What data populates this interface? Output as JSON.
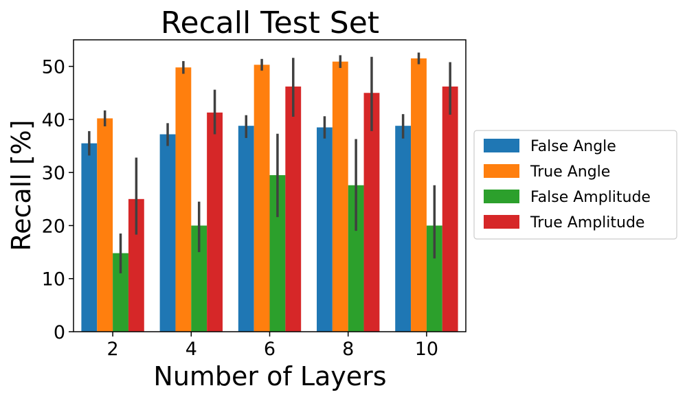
{
  "chart_data": {
    "type": "bar",
    "title": "Recall Test Set",
    "xlabel": "Number of Layers",
    "ylabel": "Recall [%]",
    "categories": [
      "2",
      "4",
      "6",
      "8",
      "10"
    ],
    "ylim": [
      0,
      55
    ],
    "yticks": [
      0,
      10,
      20,
      30,
      40,
      50
    ],
    "grid": false,
    "legend_position": "right",
    "series": [
      {
        "name": "False Angle",
        "color": "#1f77b4",
        "values": [
          35.5,
          37.2,
          38.8,
          38.5,
          38.8
        ],
        "err_low": [
          33.2,
          35.0,
          36.5,
          36.4,
          36.4
        ],
        "err_high": [
          37.8,
          39.3,
          40.8,
          40.6,
          41.0
        ]
      },
      {
        "name": "True Angle",
        "color": "#ff7f0e",
        "values": [
          40.2,
          49.8,
          50.3,
          50.9,
          51.5
        ],
        "err_low": [
          38.7,
          48.6,
          49.2,
          49.7,
          50.4
        ],
        "err_high": [
          41.7,
          51.0,
          51.4,
          52.1,
          52.6
        ]
      },
      {
        "name": "False Amplitude",
        "color": "#2ca02c",
        "values": [
          14.8,
          20.0,
          29.5,
          27.6,
          20.0
        ],
        "err_low": [
          11.0,
          15.0,
          21.6,
          19.0,
          13.8
        ],
        "err_high": [
          18.5,
          24.5,
          37.3,
          36.3,
          27.6
        ]
      },
      {
        "name": "True Amplitude",
        "color": "#d62728",
        "values": [
          25.0,
          41.3,
          46.2,
          45.0,
          46.2
        ],
        "err_low": [
          18.3,
          37.2,
          40.5,
          37.8,
          40.9
        ],
        "err_high": [
          32.8,
          45.6,
          51.6,
          51.8,
          50.8
        ]
      }
    ]
  }
}
